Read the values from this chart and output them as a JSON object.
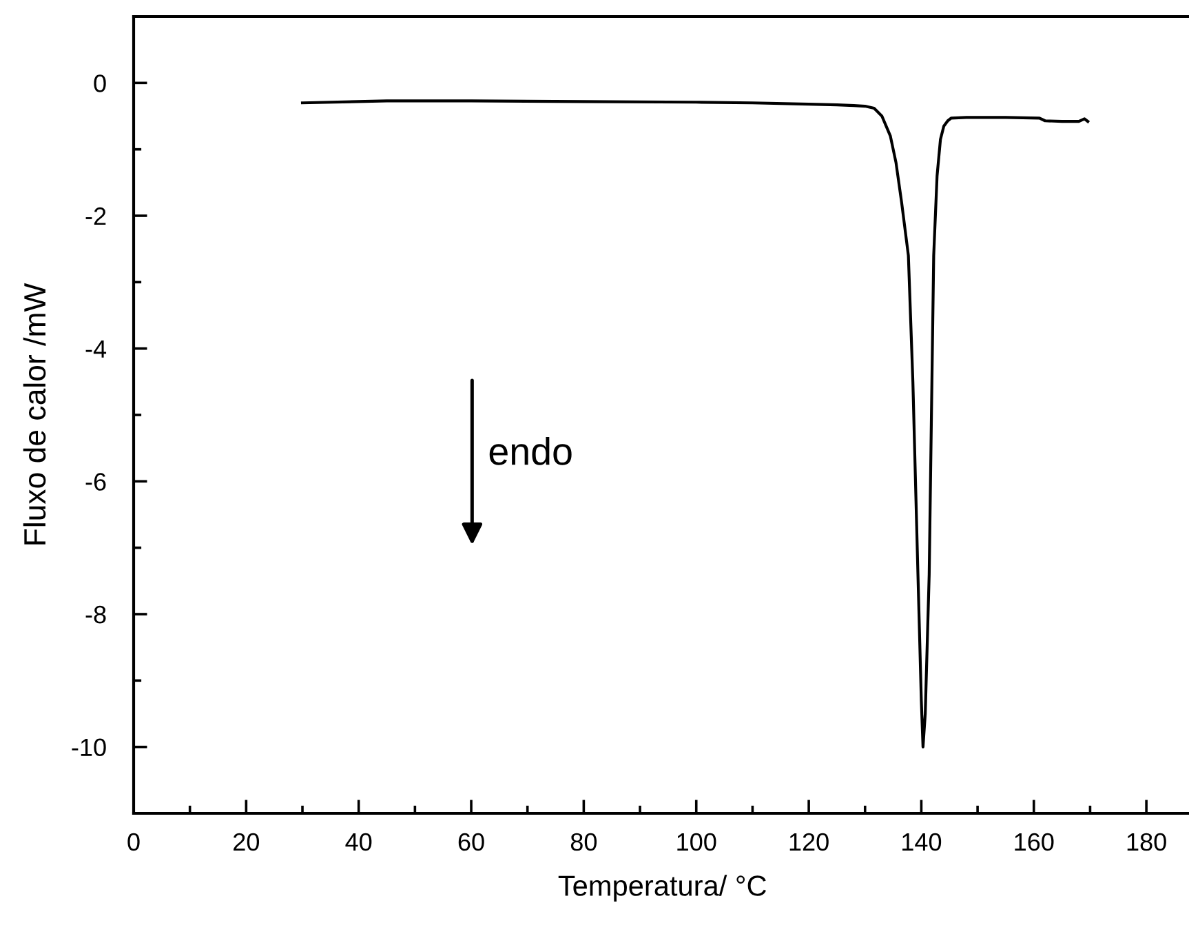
{
  "chart_data": {
    "type": "line",
    "xlabel": "Temperatura/ °C",
    "ylabel": "Fluxo de calor /mW",
    "annotations": [
      "endo"
    ],
    "x": [
      30,
      45,
      60,
      80,
      100,
      110,
      120,
      125,
      128,
      130,
      131.6,
      133,
      134.5,
      135.5,
      136.5,
      137.7,
      138.5,
      139.4,
      140,
      140.3,
      140.7,
      141.4,
      142.2,
      142.8,
      143.4,
      144,
      144.7,
      145.3,
      148,
      155,
      161,
      162,
      165,
      168,
      169,
      169.6
    ],
    "series": [
      {
        "color": "#000000",
        "values": [
          -0.3,
          -0.27,
          -0.27,
          -0.28,
          -0.29,
          -0.3,
          -0.32,
          -0.33,
          -0.34,
          -0.35,
          -0.38,
          -0.5,
          -0.8,
          -1.2,
          -1.8,
          -2.6,
          -4.5,
          -7.4,
          -9.3,
          -10.0,
          -9.5,
          -7.4,
          -2.6,
          -1.4,
          -0.85,
          -0.65,
          -0.57,
          -0.53,
          -0.52,
          -0.52,
          -0.53,
          -0.57,
          -0.58,
          -0.58,
          -0.54,
          -0.58
        ]
      }
    ],
    "xlim": [
      0,
      188
    ],
    "ylim": [
      -11,
      1
    ],
    "xticks": [
      0,
      20,
      40,
      60,
      80,
      100,
      120,
      140,
      160,
      180
    ],
    "yticks": [
      0,
      -2,
      -4,
      -6,
      -8,
      -10
    ],
    "grid": false,
    "legend": false,
    "marker": "none",
    "line_style": "solid"
  }
}
